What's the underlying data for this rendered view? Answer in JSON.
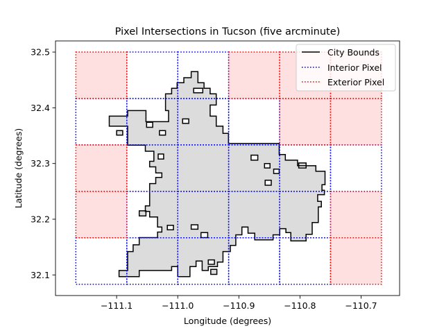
{
  "chart_data": {
    "type": "map",
    "title": "Pixel Intersections in Tucson (five arcminute)",
    "xlabel": "Longitude (degrees)",
    "ylabel": "Latitude (degrees)",
    "xlim": [
      -111.2,
      -110.637
    ],
    "ylim": [
      32.063,
      32.52
    ],
    "xticks": [
      -111.1,
      -111.0,
      -110.9,
      -110.8,
      -110.7
    ],
    "xtick_labels": [
      "−111.1",
      "−111.0",
      "−110.9",
      "−110.8",
      "−110.7"
    ],
    "yticks": [
      32.1,
      32.2,
      32.3,
      32.4,
      32.5
    ],
    "ytick_labels": [
      "32.1",
      "32.2",
      "32.3",
      "32.4",
      "32.5"
    ],
    "grid_lon_edges": [
      -111.1667,
      -111.0833,
      -111.0,
      -110.9167,
      -110.8333,
      -110.75,
      -110.6667
    ],
    "grid_lat_edges": [
      32.0833,
      32.1667,
      32.25,
      32.3333,
      32.4167,
      32.5
    ],
    "pixel_status_rows_top_to_bottom": [
      [
        "exterior",
        "interior",
        "interior",
        "exterior",
        "exterior",
        "exterior"
      ],
      [
        "interior",
        "interior",
        "interior",
        "interior",
        "exterior",
        "exterior"
      ],
      [
        "exterior",
        "interior",
        "interior",
        "interior",
        "interior",
        "interior"
      ],
      [
        "exterior",
        "interior",
        "interior",
        "interior",
        "interior",
        "exterior"
      ],
      [
        "interior",
        "interior",
        "interior",
        "interior",
        "interior",
        "exterior"
      ]
    ],
    "city_bounds": [
      [
        -111.096,
        32.097
      ],
      [
        -111.096,
        32.108
      ],
      [
        -111.082,
        32.108
      ],
      [
        -111.082,
        32.142
      ],
      [
        -111.073,
        32.142
      ],
      [
        -111.073,
        32.154
      ],
      [
        -111.063,
        32.154
      ],
      [
        -111.063,
        32.167
      ],
      [
        -111.033,
        32.167
      ],
      [
        -111.033,
        32.177
      ],
      [
        -111.026,
        32.177
      ],
      [
        -111.026,
        32.186
      ],
      [
        -111.033,
        32.186
      ],
      [
        -111.033,
        32.204
      ],
      [
        -111.046,
        32.204
      ],
      [
        -111.046,
        32.214
      ],
      [
        -111.053,
        32.214
      ],
      [
        -111.053,
        32.224
      ],
      [
        -111.046,
        32.224
      ],
      [
        -111.046,
        32.264
      ],
      [
        -111.036,
        32.264
      ],
      [
        -111.036,
        32.275
      ],
      [
        -111.026,
        32.275
      ],
      [
        -111.026,
        32.283
      ],
      [
        -111.036,
        32.283
      ],
      [
        -111.036,
        32.294
      ],
      [
        -111.046,
        32.294
      ],
      [
        -111.046,
        32.304
      ],
      [
        -111.039,
        32.304
      ],
      [
        -111.039,
        32.322
      ],
      [
        -111.053,
        32.322
      ],
      [
        -111.053,
        32.333
      ],
      [
        -111.082,
        32.333
      ],
      [
        -111.082,
        32.367
      ],
      [
        -111.112,
        32.367
      ],
      [
        -111.112,
        32.385
      ],
      [
        -111.082,
        32.385
      ],
      [
        -111.082,
        32.395
      ],
      [
        -111.052,
        32.395
      ],
      [
        -111.052,
        32.375
      ],
      [
        -111.015,
        32.375
      ],
      [
        -111.015,
        32.395
      ],
      [
        -111.02,
        32.395
      ],
      [
        -111.02,
        32.425
      ],
      [
        -111.01,
        32.425
      ],
      [
        -111.01,
        32.435
      ],
      [
        -111.001,
        32.435
      ],
      [
        -111.001,
        32.445
      ],
      [
        -110.99,
        32.445
      ],
      [
        -110.99,
        32.454
      ],
      [
        -110.978,
        32.454
      ],
      [
        -110.978,
        32.465
      ],
      [
        -110.967,
        32.465
      ],
      [
        -110.967,
        32.445
      ],
      [
        -110.957,
        32.445
      ],
      [
        -110.957,
        32.435
      ],
      [
        -110.947,
        32.435
      ],
      [
        -110.947,
        32.425
      ],
      [
        -110.937,
        32.425
      ],
      [
        -110.937,
        32.405
      ],
      [
        -110.947,
        32.405
      ],
      [
        -110.947,
        32.385
      ],
      [
        -110.937,
        32.385
      ],
      [
        -110.937,
        32.367
      ],
      [
        -110.926,
        32.367
      ],
      [
        -110.926,
        32.354
      ],
      [
        -110.917,
        32.354
      ],
      [
        -110.917,
        32.336
      ],
      [
        -110.834,
        32.336
      ],
      [
        -110.834,
        32.316
      ],
      [
        -110.824,
        32.316
      ],
      [
        -110.824,
        32.306
      ],
      [
        -110.804,
        32.306
      ],
      [
        -110.804,
        32.296
      ],
      [
        -110.774,
        32.296
      ],
      [
        -110.774,
        32.286
      ],
      [
        -110.759,
        32.286
      ],
      [
        -110.759,
        32.262
      ],
      [
        -110.764,
        32.262
      ],
      [
        -110.764,
        32.252
      ],
      [
        -110.76,
        32.252
      ],
      [
        -110.76,
        32.244
      ],
      [
        -110.771,
        32.244
      ],
      [
        -110.771,
        32.232
      ],
      [
        -110.765,
        32.232
      ],
      [
        -110.765,
        32.222
      ],
      [
        -110.77,
        32.222
      ],
      [
        -110.77,
        32.194
      ],
      [
        -110.78,
        32.194
      ],
      [
        -110.78,
        32.173
      ],
      [
        -110.79,
        32.173
      ],
      [
        -110.79,
        32.161
      ],
      [
        -110.815,
        32.161
      ],
      [
        -110.815,
        32.176
      ],
      [
        -110.823,
        32.176
      ],
      [
        -110.823,
        32.183
      ],
      [
        -110.833,
        32.183
      ],
      [
        -110.833,
        32.172
      ],
      [
        -110.844,
        32.172
      ],
      [
        -110.844,
        32.163
      ],
      [
        -110.874,
        32.163
      ],
      [
        -110.874,
        32.175
      ],
      [
        -110.885,
        32.175
      ],
      [
        -110.885,
        32.186
      ],
      [
        -110.895,
        32.186
      ],
      [
        -110.895,
        32.172
      ],
      [
        -110.905,
        32.172
      ],
      [
        -110.905,
        32.153
      ],
      [
        -110.914,
        32.153
      ],
      [
        -110.914,
        32.142
      ],
      [
        -110.926,
        32.142
      ],
      [
        -110.926,
        32.123
      ],
      [
        -110.935,
        32.123
      ],
      [
        -110.935,
        32.115
      ],
      [
        -110.95,
        32.115
      ],
      [
        -110.95,
        32.108
      ],
      [
        -110.96,
        32.108
      ],
      [
        -110.96,
        32.125
      ],
      [
        -110.97,
        32.125
      ],
      [
        -110.97,
        32.115
      ],
      [
        -110.98,
        32.115
      ],
      [
        -110.98,
        32.097
      ],
      [
        -111.0,
        32.097
      ],
      [
        -111.0,
        32.115
      ],
      [
        -111.01,
        32.115
      ],
      [
        -111.01,
        32.108
      ],
      [
        -111.063,
        32.108
      ],
      [
        -111.063,
        32.097
      ]
    ],
    "city_holes": [
      [
        -110.974,
        32.427,
        0.015,
        0.008
      ],
      [
        -111.051,
        32.365,
        0.01,
        0.009
      ],
      [
        -111.1,
        32.351,
        0.01,
        0.008
      ],
      [
        -111.03,
        32.351,
        0.01,
        0.008
      ],
      [
        -110.992,
        32.372,
        0.01,
        0.008
      ],
      [
        -111.032,
        32.308,
        0.009,
        0.009
      ],
      [
        -110.88,
        32.306,
        0.011,
        0.009
      ],
      [
        -110.858,
        32.292,
        0.009,
        0.008
      ],
      [
        -110.843,
        32.282,
        0.009,
        0.008
      ],
      [
        -110.857,
        32.261,
        0.01,
        0.009
      ],
      [
        -110.802,
        32.292,
        0.012,
        0.009
      ],
      [
        -111.063,
        32.206,
        0.011,
        0.009
      ],
      [
        -111.017,
        32.181,
        0.01,
        0.008
      ],
      [
        -110.978,
        32.182,
        0.011,
        0.008
      ],
      [
        -110.962,
        32.167,
        0.011,
        0.009
      ],
      [
        -110.95,
        32.119,
        0.01,
        0.008
      ],
      [
        -110.946,
        32.101,
        0.01,
        0.009
      ]
    ],
    "legend": {
      "position": "top-right",
      "entries": [
        {
          "label": "City Bounds",
          "color": "#000000",
          "style": "solid"
        },
        {
          "label": "Interior Pixel",
          "color": "#0000ff",
          "style": "dotted"
        },
        {
          "label": "Exterior Pixel",
          "color": "#ff0000",
          "style": "dotted"
        }
      ]
    },
    "colors": {
      "city_fill": "#dcdcdc",
      "city_edge": "#000000",
      "interior_edge": "#0000ff",
      "exterior_edge": "#ff0000",
      "exterior_fill": "#ffe0e0"
    },
    "grid": false
  }
}
